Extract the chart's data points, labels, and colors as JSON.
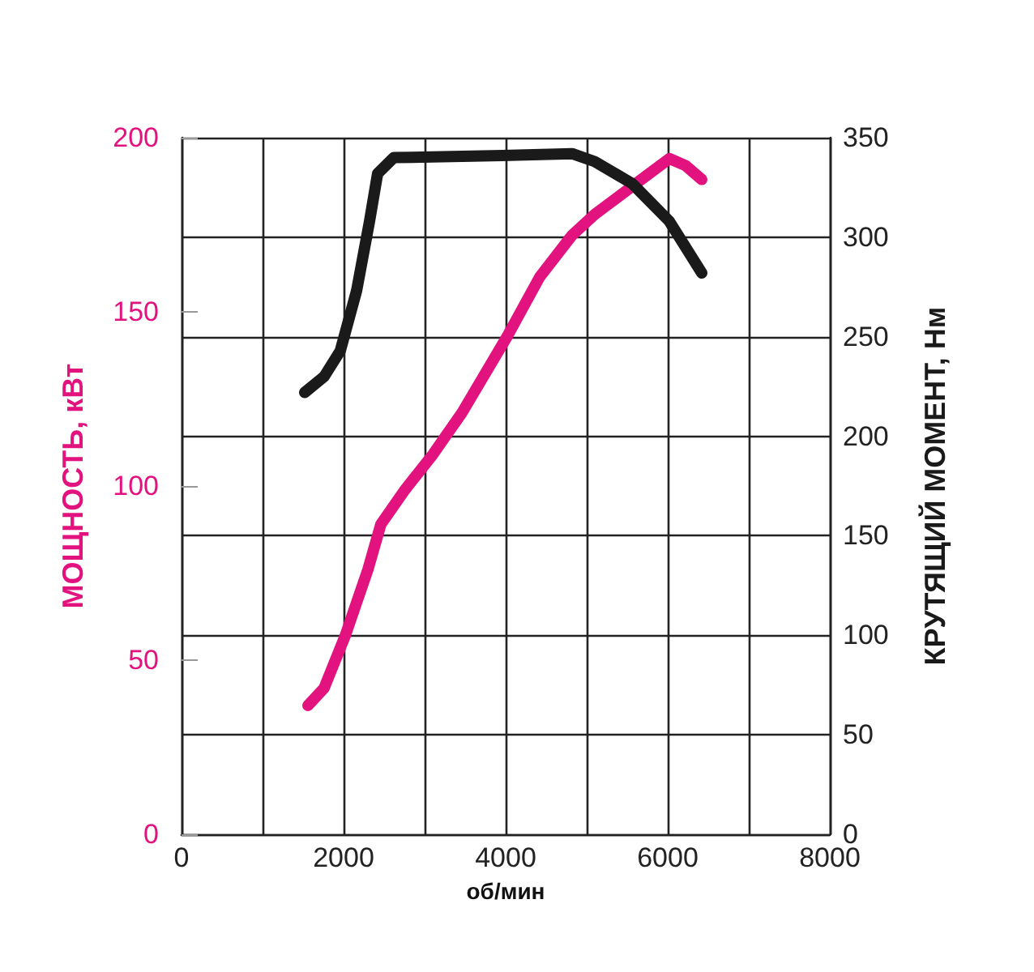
{
  "chart_data": {
    "type": "line",
    "xlabel": "об/мин",
    "ylabel": "МОЩНОСТЬ, кВт",
    "y2label": "КРУТЯЩИЙ МОМЕНТ, Нм",
    "xlim": [
      0,
      8000
    ],
    "xticks": [
      0,
      {
        "value": 1000,
        "label": null
      },
      2000,
      {
        "value": 3000,
        "label": null
      },
      4000,
      {
        "value": 5000,
        "label": null
      },
      6000,
      {
        "value": 7000,
        "label": null
      },
      8000
    ],
    "ylim": [
      0,
      200
    ],
    "yticks": [
      0,
      50,
      100,
      150,
      200
    ],
    "y2lim": [
      0,
      350
    ],
    "y2ticks": [
      0,
      50,
      100,
      150,
      200,
      250,
      300,
      350
    ],
    "grid": true,
    "marker": "none",
    "line_style": "solid",
    "series": [
      {
        "color": "#e2137f",
        "x": [
          1560,
          1760,
          2020,
          2300,
          2460,
          2760,
          3100,
          3460,
          4020,
          4420,
          4820,
          5100,
          5560,
          6020,
          6220,
          6420
        ],
        "values": [
          37,
          42,
          57,
          76,
          89,
          99,
          109,
          121,
          143,
          160,
          172,
          178,
          186,
          194,
          192,
          188
        ]
      },
      {
        "color": "#1a1a1a",
        "axis": "y2",
        "x": [
          1520,
          1760,
          1960,
          2160,
          2320,
          2420,
          2620,
          3960,
          4820,
          5100,
          5560,
          6020,
          6420
        ],
        "values": [
          222,
          230,
          243,
          273,
          308,
          332,
          340,
          341,
          342,
          338,
          327,
          308,
          282
        ]
      }
    ]
  }
}
